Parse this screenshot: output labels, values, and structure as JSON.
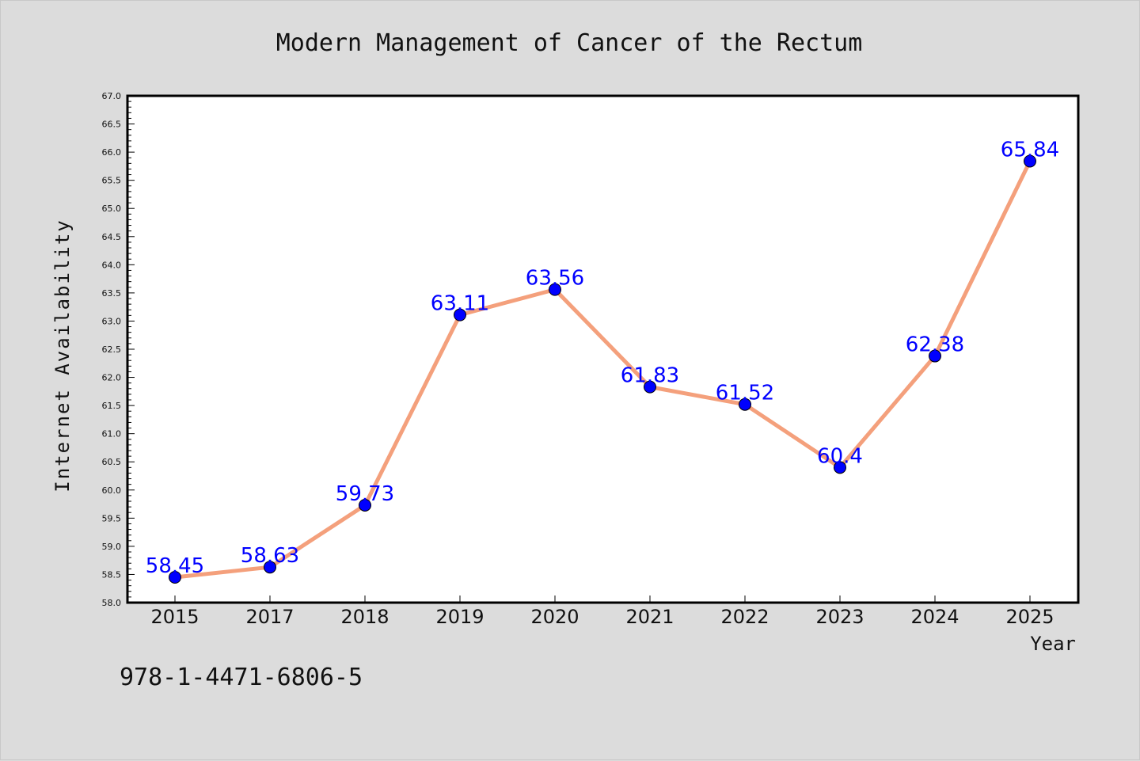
{
  "chart_data": {
    "type": "line",
    "title": "Modern Management of Cancer of the Rectum",
    "xlabel": "Year",
    "ylabel": "Internet Availability",
    "categories": [
      "2015",
      "2017",
      "2018",
      "2019",
      "2020",
      "2021",
      "2022",
      "2023",
      "2024",
      "2025"
    ],
    "series": [
      {
        "values": [
          58.45,
          58.63,
          59.73,
          63.11,
          63.56,
          61.83,
          61.52,
          60.4,
          62.38,
          65.84
        ],
        "labels": [
          "58.45",
          "58.63",
          "59.73",
          "63.11",
          "63.56",
          "61.83",
          "61.52",
          "60.4",
          "62.38",
          "65.84"
        ]
      }
    ],
    "ylim": [
      58.0,
      67.0
    ],
    "yticks": [
      "58.0",
      "58.5",
      "59.0",
      "59.5",
      "60.0",
      "60.5",
      "61.0",
      "61.5",
      "62.0",
      "62.5",
      "63.0",
      "63.5",
      "64.0",
      "64.5",
      "65.0",
      "65.5",
      "66.0",
      "66.5",
      "67.0"
    ],
    "grid": false,
    "legend": "none",
    "colors": {
      "line": "#f4a07c",
      "marker": "#0000ff",
      "data_label": "#0000ff",
      "background": "#dcdcdc",
      "plot_background": "#ffffff"
    }
  },
  "footnote": "978-1-4471-6806-5"
}
